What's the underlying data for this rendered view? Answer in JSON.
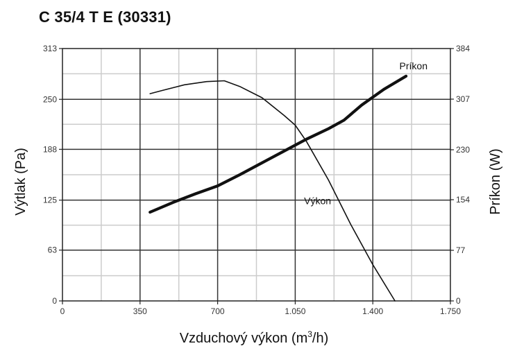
{
  "chart_data": {
    "type": "line",
    "title": "C 35/4 T E (30331)",
    "xlabel": {
      "main": "Vzduchový výkon (m",
      "sup": "3",
      "tail": "/h)"
    },
    "ylabel": "Výtlak (Pa)",
    "y2label": "Príkon (W)",
    "xlim": [
      0,
      1750
    ],
    "ylim": [
      0,
      313
    ],
    "y2lim": [
      0,
      384
    ],
    "x_ticks": [
      0,
      350,
      700,
      1050,
      1400,
      1750
    ],
    "x_tick_labels": [
      "0",
      "350",
      "700",
      "1.050",
      "1.400",
      "1.750"
    ],
    "y_ticks": [
      0,
      63,
      125,
      188,
      250,
      313
    ],
    "y_tick_labels": [
      "0",
      "63",
      "125",
      "188",
      "250",
      "313"
    ],
    "y2_ticks": [
      0,
      77,
      154,
      230,
      307,
      384
    ],
    "y2_tick_labels": [
      "0",
      "77",
      "154",
      "230",
      "307",
      "384"
    ],
    "grid": true,
    "series": [
      {
        "name": "Výkon",
        "axis": "left",
        "points": [
          [
            395,
            257
          ],
          [
            450,
            261
          ],
          [
            550,
            268
          ],
          [
            650,
            272
          ],
          [
            730,
            273
          ],
          [
            800,
            266
          ],
          [
            900,
            252
          ],
          [
            1000,
            230
          ],
          [
            1050,
            218
          ],
          [
            1100,
            198
          ],
          [
            1200,
            150
          ],
          [
            1300,
            95
          ],
          [
            1400,
            45
          ],
          [
            1500,
            0
          ]
        ]
      },
      {
        "name": "Príkon",
        "axis": "right",
        "points": [
          [
            395,
            135
          ],
          [
            500,
            150
          ],
          [
            600,
            163
          ],
          [
            700,
            175
          ],
          [
            800,
            192
          ],
          [
            900,
            210
          ],
          [
            1000,
            228
          ],
          [
            1100,
            246
          ],
          [
            1200,
            262
          ],
          [
            1270,
            275
          ],
          [
            1350,
            298
          ],
          [
            1450,
            322
          ],
          [
            1550,
            342
          ]
        ]
      }
    ]
  }
}
